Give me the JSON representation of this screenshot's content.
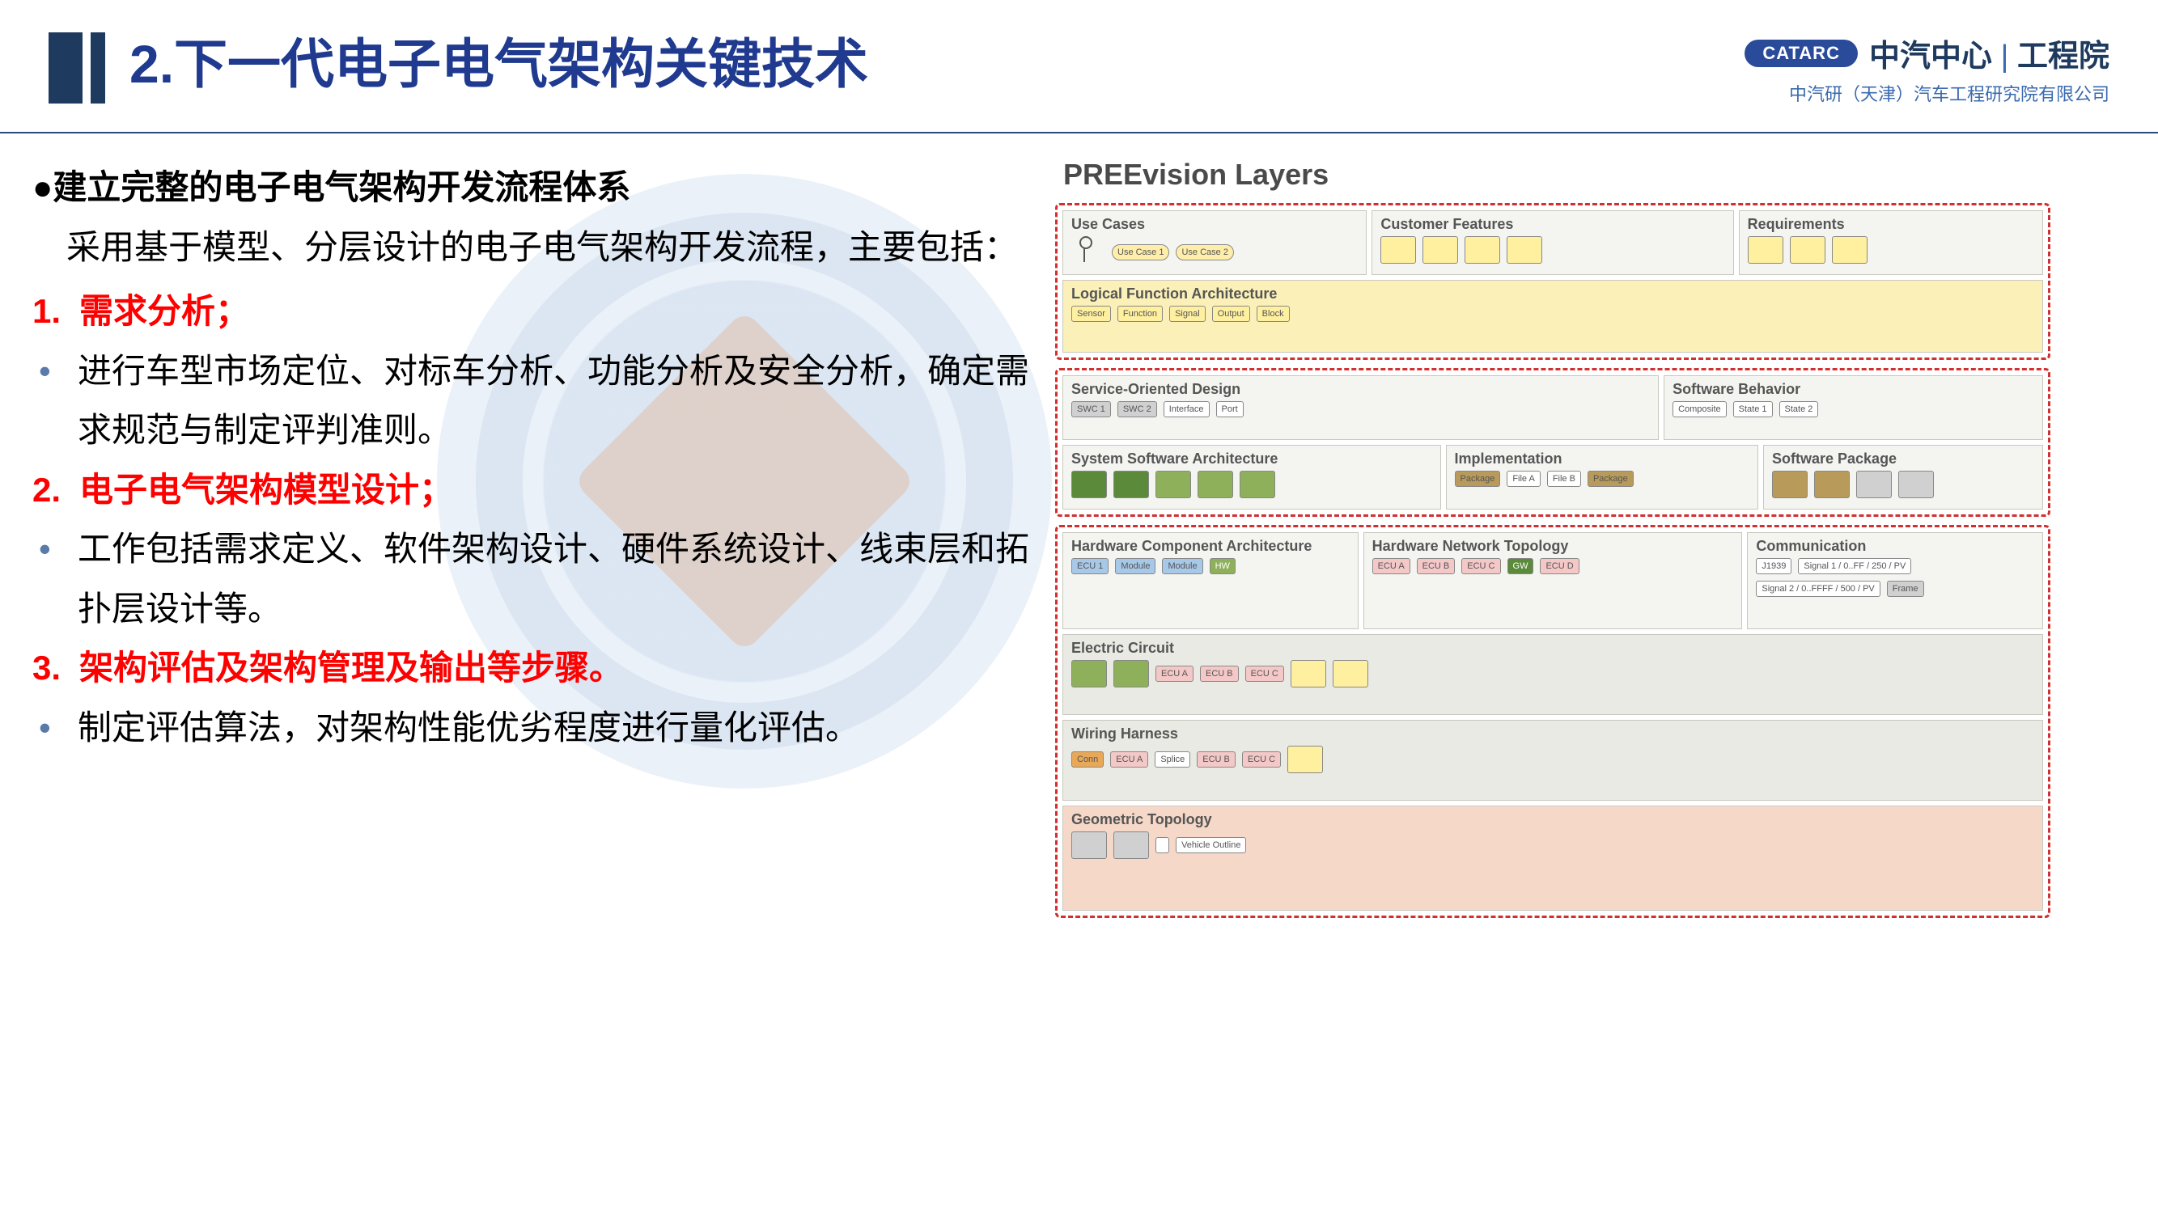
{
  "header": {
    "title": "2.下一代电子电气架构关键技术",
    "logo_badge": "CATARC",
    "logo_main_left": "中汽中心",
    "logo_main_right": "工程院",
    "logo_sub": "中汽研（天津）汽车工程研究院有限公司",
    "title_color": "#1f3a8f",
    "bar_color": "#1f3a5f"
  },
  "left": {
    "heading": "●建立完整的电子电气架构开发流程体系",
    "intro": "　采用基于模型、分层设计的电子电气架构开发流程，主要包括：",
    "items": [
      {
        "num": "1.",
        "title": "需求分析；",
        "bullets": [
          "进行车型市场定位、对标车分析、功能分析及安全分析，确定需求规范与制定评判准则。"
        ]
      },
      {
        "num": "2.",
        "title": "电子电气架构模型设计；",
        "bullets": [
          "工作包括需求定义、软件架构设计、硬件系统设计、线束层和拓扑层设计等。"
        ]
      },
      {
        "num": "3.",
        "title": "架构评估及架构管理及输出等步骤。",
        "bullets": [
          "制定评估算法，对架构性能优劣程度进行量化评估。"
        ]
      }
    ],
    "red_color": "#ff0000",
    "bullet_color": "#5a7aaa"
  },
  "diagram": {
    "title": "PREEvision Layers",
    "groups": [
      {
        "rows": [
          [
            {
              "label": "Use Cases",
              "bg": "default",
              "blocks": [
                {
                  "t": "Use Case 1",
                  "c": "oval"
                },
                {
                  "t": "Use Case 2",
                  "c": "oval"
                }
              ],
              "actor": true,
              "flex": 1
            },
            {
              "label": "Customer Features",
              "bg": "default",
              "blocks": [
                {
                  "t": "",
                  "c": "yellow tall"
                },
                {
                  "t": "",
                  "c": "yellow tall"
                },
                {
                  "t": "",
                  "c": "yellow tall"
                },
                {
                  "t": "",
                  "c": "yellow tall"
                }
              ],
              "flex": 1.2
            },
            {
              "label": "Requirements",
              "bg": "default",
              "blocks": [
                {
                  "t": "",
                  "c": "yellow tall"
                },
                {
                  "t": "",
                  "c": "yellow tall"
                },
                {
                  "t": "",
                  "c": "yellow tall"
                }
              ],
              "flex": 1
            }
          ],
          [
            {
              "label": "Logical Function Architecture",
              "bg": "yellowbg",
              "blocks": [
                {
                  "t": "Sensor",
                  "c": "yellow"
                },
                {
                  "t": "Function",
                  "c": "yellow"
                },
                {
                  "t": "Signal",
                  "c": "yellow"
                },
                {
                  "t": "Output",
                  "c": "yellow"
                },
                {
                  "t": "Block",
                  "c": "yellow"
                }
              ],
              "flex": 1,
              "height": 90
            }
          ]
        ]
      },
      {
        "rows": [
          [
            {
              "label": "Service-Oriented Design",
              "bg": "default",
              "blocks": [
                {
                  "t": "SWC 1",
                  "c": "gray"
                },
                {
                  "t": "SWC 2",
                  "c": "gray"
                },
                {
                  "t": "Interface",
                  "c": ""
                },
                {
                  "t": "Port",
                  "c": ""
                }
              ],
              "flex": 1.6
            },
            {
              "label": "Software Behavior",
              "bg": "default",
              "blocks": [
                {
                  "t": "Composite",
                  "c": ""
                },
                {
                  "t": "State 1",
                  "c": ""
                },
                {
                  "t": "State 2",
                  "c": ""
                }
              ],
              "flex": 1
            }
          ],
          [
            {
              "label": "System Software Architecture",
              "bg": "default",
              "blocks": [
                {
                  "t": "",
                  "c": "dgreen tall"
                },
                {
                  "t": "",
                  "c": "dgreen tall"
                },
                {
                  "t": "",
                  "c": "green tall"
                },
                {
                  "t": "",
                  "c": "green tall"
                },
                {
                  "t": "",
                  "c": "green tall"
                }
              ],
              "flex": 1.1
            },
            {
              "label": "Implementation",
              "bg": "default",
              "blocks": [
                {
                  "t": "Package",
                  "c": "brown"
                },
                {
                  "t": "File A",
                  "c": ""
                },
                {
                  "t": "File B",
                  "c": ""
                },
                {
                  "t": "Package",
                  "c": "brown"
                }
              ],
              "flex": 0.9
            },
            {
              "label": "Software Package",
              "bg": "default",
              "blocks": [
                {
                  "t": "",
                  "c": "brown tall"
                },
                {
                  "t": "",
                  "c": "brown tall"
                },
                {
                  "t": "",
                  "c": "gray tall"
                },
                {
                  "t": "",
                  "c": "gray tall"
                }
              ],
              "flex": 0.8
            }
          ]
        ]
      },
      {
        "rows": [
          [
            {
              "label": "Hardware Component Architecture",
              "bg": "default",
              "blocks": [
                {
                  "t": "ECU 1",
                  "c": "blue"
                },
                {
                  "t": "Module",
                  "c": "blue"
                },
                {
                  "t": "Module",
                  "c": "blue"
                },
                {
                  "t": "HW",
                  "c": "green"
                }
              ],
              "flex": 1,
              "height": 120
            },
            {
              "label": "Hardware Network Topology",
              "bg": "default",
              "blocks": [
                {
                  "t": "ECU A",
                  "c": "pink"
                },
                {
                  "t": "ECU B",
                  "c": "pink"
                },
                {
                  "t": "ECU C",
                  "c": "pink"
                },
                {
                  "t": "GW",
                  "c": "dgreen"
                },
                {
                  "t": "ECU D",
                  "c": "pink"
                }
              ],
              "flex": 1.3,
              "height": 120
            },
            {
              "label": "Communication",
              "bg": "default",
              "blocks": [
                {
                  "t": "J1939",
                  "c": ""
                },
                {
                  "t": "Signal 1 / 0..FF / 250 / PV",
                  "c": ""
                },
                {
                  "t": "Signal 2 / 0..FFFF / 500 / PV",
                  "c": ""
                },
                {
                  "t": "Frame",
                  "c": "gray"
                }
              ],
              "flex": 1,
              "height": 120
            }
          ],
          [
            {
              "label": "Electric Circuit",
              "bg": "widebg",
              "blocks": [
                {
                  "t": "",
                  "c": "green tall"
                },
                {
                  "t": "",
                  "c": "green tall"
                },
                {
                  "t": "ECU A",
                  "c": "pink"
                },
                {
                  "t": "ECU B",
                  "c": "pink"
                },
                {
                  "t": "ECU C",
                  "c": "pink"
                },
                {
                  "t": "",
                  "c": "yellow tall"
                },
                {
                  "t": "",
                  "c": "yellow tall"
                }
              ],
              "flex": 1,
              "height": 100
            }
          ],
          [
            {
              "label": "Wiring Harness",
              "bg": "widebg",
              "blocks": [
                {
                  "t": "Conn",
                  "c": "orange"
                },
                {
                  "t": "ECU A",
                  "c": "pink"
                },
                {
                  "t": "Splice",
                  "c": ""
                },
                {
                  "t": "ECU B",
                  "c": "pink"
                },
                {
                  "t": "ECU C",
                  "c": "pink"
                },
                {
                  "t": "",
                  "c": "yellow tall"
                }
              ],
              "flex": 1,
              "height": 100
            }
          ],
          [
            {
              "label": "Geometric Topology",
              "bg": "salmonbg",
              "blocks": [
                {
                  "t": "",
                  "c": "gray tall"
                },
                {
                  "t": "",
                  "c": "gray tall"
                },
                {
                  "t": "",
                  "c": ""
                },
                {
                  "t": "Vehicle Outline",
                  "c": ""
                }
              ],
              "flex": 1,
              "height": 130
            }
          ]
        ]
      }
    ],
    "dash_color": "#d03030",
    "panel_bg": "#f4f4f0"
  }
}
